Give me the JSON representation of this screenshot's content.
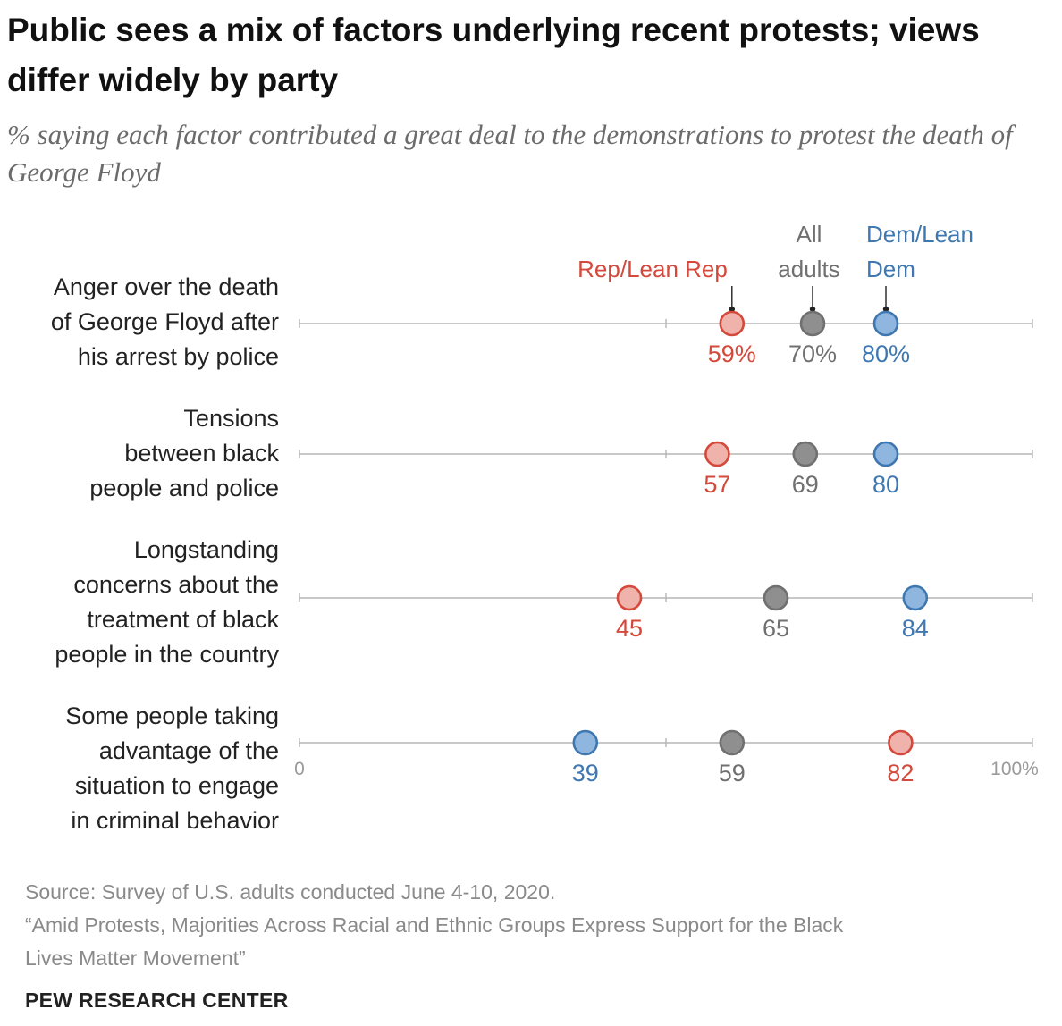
{
  "title": "Public sees a mix of factors underlying recent protests; views differ widely by party",
  "subtitle": "% saying each factor contributed a great deal to the demonstrations to protest the death of George Floyd",
  "legend": {
    "rep": "Rep/Lean Rep",
    "all_line1": "All",
    "all_line2": "adults",
    "dem_line1": "Dem/Lean",
    "dem_line2": "Dem"
  },
  "colors": {
    "rep": "#d4493b",
    "all": "#707070",
    "dem": "#3f78b0",
    "rep_fill": "#f0b3ab",
    "all_fill": "#8f8f8f",
    "dem_fill": "#8fb6df"
  },
  "chart_data": {
    "type": "scatter",
    "xlim": [
      0,
      100
    ],
    "axis_min_label": "0",
    "axis_max_label": "100%",
    "categories": [
      "Anger over the death of George Floyd after his arrest by police",
      "Tensions between black people and police",
      "Longstanding concerns about the treatment of black people in the country",
      "Some people taking advantage of the situation to engage in criminal behavior"
    ],
    "series": [
      {
        "name": "Rep/Lean Rep",
        "values": [
          59,
          57,
          45,
          82
        ],
        "labels": [
          "59%",
          "57",
          "45",
          "82"
        ]
      },
      {
        "name": "All adults",
        "values": [
          70,
          69,
          65,
          59
        ],
        "labels": [
          "70%",
          "69",
          "65",
          "59"
        ]
      },
      {
        "name": "Dem/Lean Dem",
        "values": [
          80,
          80,
          84,
          39
        ],
        "labels": [
          "80%",
          "80",
          "84",
          "39"
        ]
      }
    ]
  },
  "rows": [
    {
      "lines": [
        "Anger over the death",
        "of George Floyd after",
        "his arrest by police"
      ]
    },
    {
      "lines": [
        "Tensions",
        "between black",
        "people and police"
      ]
    },
    {
      "lines": [
        "Longstanding",
        "concerns about the",
        "treatment of black",
        "people in the country"
      ]
    },
    {
      "lines": [
        "Some people taking",
        "advantage of the",
        "situation to engage",
        "in criminal behavior"
      ]
    }
  ],
  "source": {
    "line1": "Source: Survey of U.S. adults conducted June 4-10, 2020.",
    "line2": "“Amid Protests, Majorities Across Racial and Ethnic Groups Express Support for the Black",
    "line3": "Lives Matter Movement”"
  },
  "brand": "PEW RESEARCH CENTER"
}
